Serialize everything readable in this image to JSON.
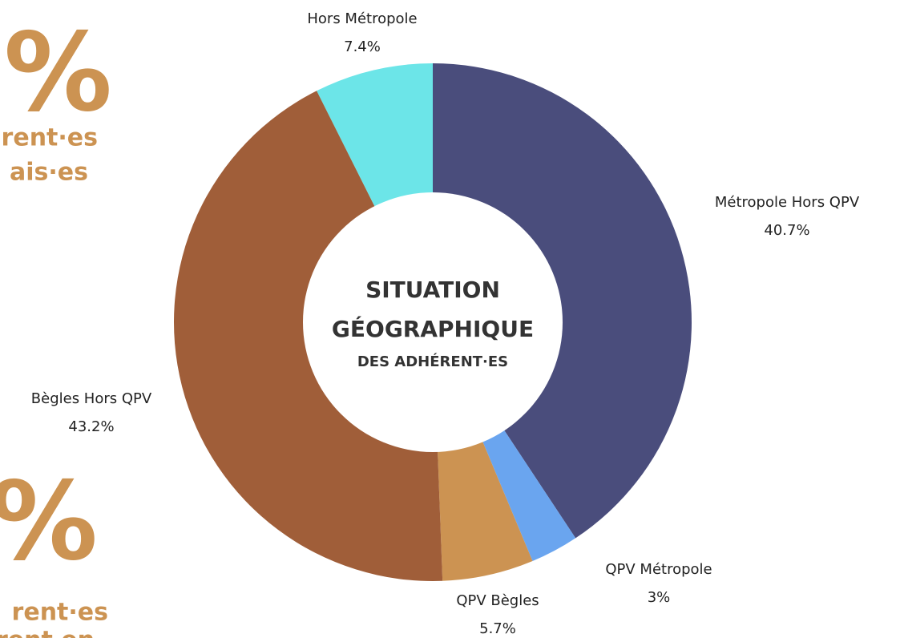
{
  "chart_data": {
    "type": "donut",
    "title": [
      "SITUATION",
      "GÉOGRAPHIQUE"
    ],
    "subtitle": "DES ADHÉRENT·ES",
    "categories": [
      "Métropole Hors QPV",
      "QPV Métropole",
      "QPV Bègles",
      "Bègles Hors QPV",
      "Hors Métropole"
    ],
    "values": [
      40.7,
      3,
      5.7,
      43.2,
      7.4
    ],
    "value_labels": [
      "40.7%",
      "3%",
      "5.7%",
      "43.2%",
      "7.4%"
    ],
    "colors": [
      "#4a4d7c",
      "#6aa5ef",
      "#cc9352",
      "#a05e39",
      "#6ce5e8"
    ]
  },
  "side_text": [
    {
      "big": "%",
      "lines": [
        "rent·es",
        "ais·es"
      ]
    },
    {
      "big": "%",
      "lines": [
        "rent·es",
        "rent en"
      ]
    }
  ]
}
